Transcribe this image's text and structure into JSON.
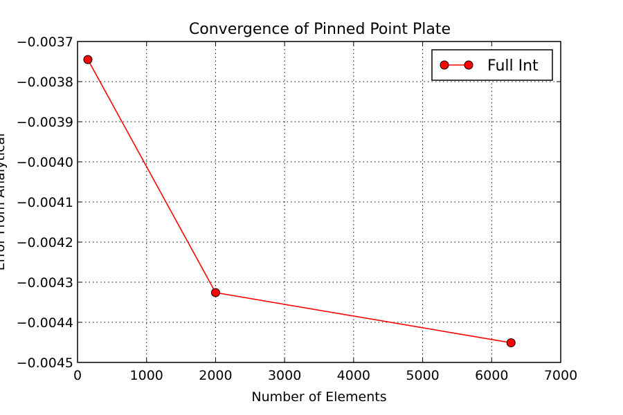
{
  "chart_data": {
    "type": "line",
    "title": "Convergence of Pinned Point Plate",
    "xlabel": "Number of Elements",
    "ylabel": "Error From Analytical",
    "xlim": [
      0,
      7000
    ],
    "ylim": [
      -0.0045,
      -0.0037
    ],
    "xticks": [
      0,
      1000,
      2000,
      3000,
      4000,
      5000,
      6000,
      7000
    ],
    "xtick_labels": [
      "0",
      "1000",
      "2000",
      "3000",
      "4000",
      "5000",
      "6000",
      "7000"
    ],
    "yticks": [
      -0.0037,
      -0.0038,
      -0.0039,
      -0.004,
      -0.0041,
      -0.0042,
      -0.0043,
      -0.0044,
      -0.0045
    ],
    "ytick_labels": [
      "−0.0037",
      "−0.0038",
      "−0.0039",
      "−0.0040",
      "−0.0041",
      "−0.0042",
      "−0.0043",
      "−0.0044",
      "−0.0045"
    ],
    "grid": true,
    "legend_position": "top-right",
    "series": [
      {
        "name": "Full Int",
        "color": "#ff0000",
        "marker": "circle",
        "x": [
          150,
          2000,
          6280
        ],
        "y": [
          -0.003745,
          -0.004326,
          -0.004451
        ]
      }
    ]
  }
}
